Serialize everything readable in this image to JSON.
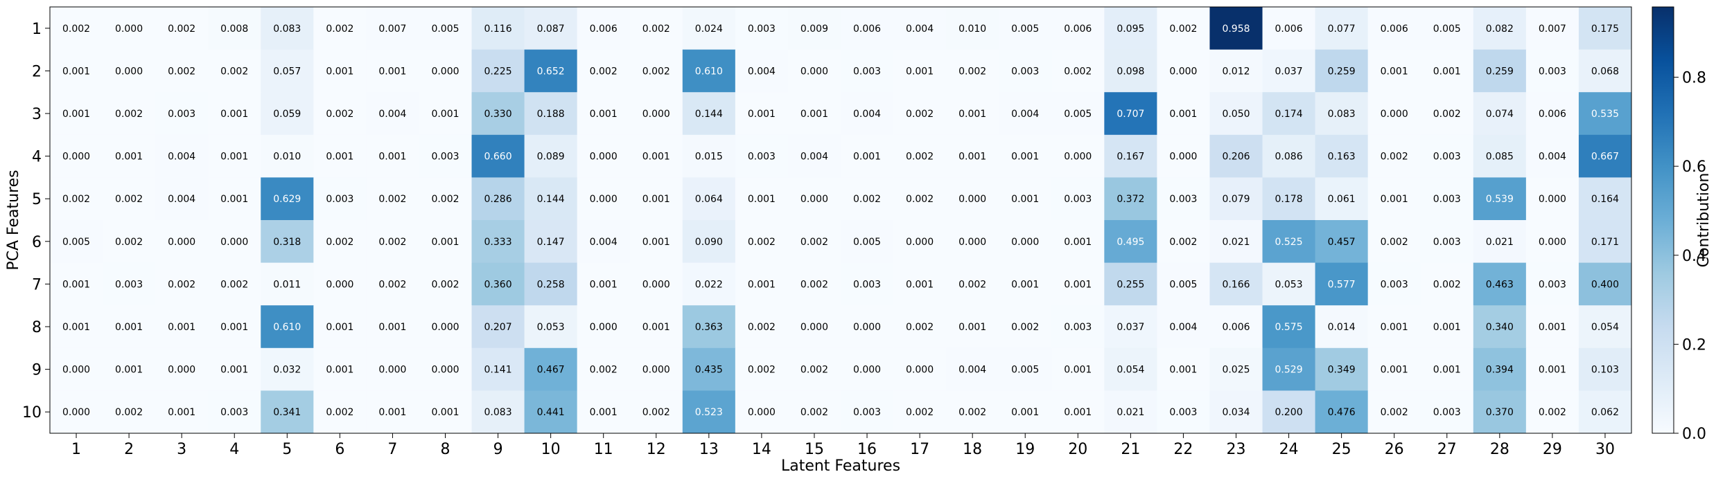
{
  "chart_data": {
    "type": "heatmap",
    "title": "",
    "xlabel": "Latent Features",
    "ylabel": "PCA Features",
    "colorbar": {
      "label": "Contribution",
      "range": [
        0.0,
        0.958
      ],
      "ticks": [
        0.0,
        0.2,
        0.4,
        0.6,
        0.8
      ],
      "tick_labels": [
        "0.0",
        "0.2",
        "0.4",
        "0.6",
        "0.8"
      ],
      "colormap": "Blues",
      "placement": "right"
    },
    "colors": {
      "low": "#f7fbff",
      "high": "#08306b",
      "text_dark": "#000000",
      "text_light": "#ffffff"
    },
    "grid": false,
    "x_categories": [
      "1",
      "2",
      "3",
      "4",
      "5",
      "6",
      "7",
      "8",
      "9",
      "10",
      "11",
      "12",
      "13",
      "14",
      "15",
      "16",
      "17",
      "18",
      "19",
      "20",
      "21",
      "22",
      "23",
      "24",
      "25",
      "26",
      "27",
      "28",
      "29",
      "30"
    ],
    "y_categories": [
      "1",
      "2",
      "3",
      "4",
      "5",
      "6",
      "7",
      "8",
      "9",
      "10"
    ],
    "values": [
      [
        0.002,
        0.0,
        0.002,
        0.008,
        0.083,
        0.002,
        0.007,
        0.005,
        0.116,
        0.087,
        0.006,
        0.002,
        0.024,
        0.003,
        0.009,
        0.006,
        0.004,
        0.01,
        0.005,
        0.006,
        0.095,
        0.002,
        0.958,
        0.006,
        0.077,
        0.006,
        0.005,
        0.082,
        0.007,
        0.175
      ],
      [
        0.001,
        0.0,
        0.002,
        0.002,
        0.057,
        0.001,
        0.001,
        0.0,
        0.225,
        0.652,
        0.002,
        0.002,
        0.61,
        0.004,
        0.0,
        0.003,
        0.001,
        0.002,
        0.003,
        0.002,
        0.098,
        0.0,
        0.012,
        0.037,
        0.259,
        0.001,
        0.001,
        0.259,
        0.003,
        0.068
      ],
      [
        0.001,
        0.002,
        0.003,
        0.001,
        0.059,
        0.002,
        0.004,
        0.001,
        0.33,
        0.188,
        0.001,
        0.0,
        0.144,
        0.001,
        0.001,
        0.004,
        0.002,
        0.001,
        0.004,
        0.005,
        0.707,
        0.001,
        0.05,
        0.174,
        0.083,
        0.0,
        0.002,
        0.074,
        0.006,
        0.535
      ],
      [
        0.0,
        0.001,
        0.004,
        0.001,
        0.01,
        0.001,
        0.001,
        0.003,
        0.66,
        0.089,
        0.0,
        0.001,
        0.015,
        0.003,
        0.004,
        0.001,
        0.002,
        0.001,
        0.001,
        0.0,
        0.167,
        0.0,
        0.206,
        0.086,
        0.163,
        0.002,
        0.003,
        0.085,
        0.004,
        0.667
      ],
      [
        0.002,
        0.002,
        0.004,
        0.001,
        0.629,
        0.003,
        0.002,
        0.002,
        0.286,
        0.144,
        0.0,
        0.001,
        0.064,
        0.001,
        0.0,
        0.002,
        0.002,
        0.0,
        0.001,
        0.003,
        0.372,
        0.003,
        0.079,
        0.178,
        0.061,
        0.001,
        0.003,
        0.539,
        0.0,
        0.164
      ],
      [
        0.005,
        0.002,
        0.0,
        0.0,
        0.318,
        0.002,
        0.002,
        0.001,
        0.333,
        0.147,
        0.004,
        0.001,
        0.09,
        0.002,
        0.002,
        0.005,
        0.0,
        0.0,
        0.0,
        0.001,
        0.495,
        0.002,
        0.021,
        0.525,
        0.457,
        0.002,
        0.003,
        0.021,
        0.0,
        0.171
      ],
      [
        0.001,
        0.003,
        0.002,
        0.002,
        0.011,
        0.0,
        0.002,
        0.002,
        0.36,
        0.258,
        0.001,
        0.0,
        0.022,
        0.001,
        0.002,
        0.003,
        0.001,
        0.002,
        0.001,
        0.001,
        0.255,
        0.005,
        0.166,
        0.053,
        0.577,
        0.003,
        0.002,
        0.463,
        0.003,
        0.4
      ],
      [
        0.001,
        0.001,
        0.001,
        0.001,
        0.61,
        0.001,
        0.001,
        0.0,
        0.207,
        0.053,
        0.0,
        0.001,
        0.363,
        0.002,
        0.0,
        0.0,
        0.002,
        0.001,
        0.002,
        0.003,
        0.037,
        0.004,
        0.006,
        0.575,
        0.014,
        0.001,
        0.001,
        0.34,
        0.001,
        0.054
      ],
      [
        0.0,
        0.001,
        0.0,
        0.001,
        0.032,
        0.001,
        0.0,
        0.0,
        0.141,
        0.467,
        0.002,
        0.0,
        0.435,
        0.002,
        0.002,
        0.0,
        0.0,
        0.004,
        0.005,
        0.001,
        0.054,
        0.001,
        0.025,
        0.529,
        0.349,
        0.001,
        0.001,
        0.394,
        0.001,
        0.103
      ],
      [
        0.0,
        0.002,
        0.001,
        0.003,
        0.341,
        0.002,
        0.001,
        0.001,
        0.083,
        0.441,
        0.001,
        0.002,
        0.523,
        0.0,
        0.002,
        0.003,
        0.002,
        0.002,
        0.001,
        0.001,
        0.021,
        0.003,
        0.034,
        0.2,
        0.476,
        0.002,
        0.003,
        0.37,
        0.002,
        0.062
      ]
    ]
  }
}
